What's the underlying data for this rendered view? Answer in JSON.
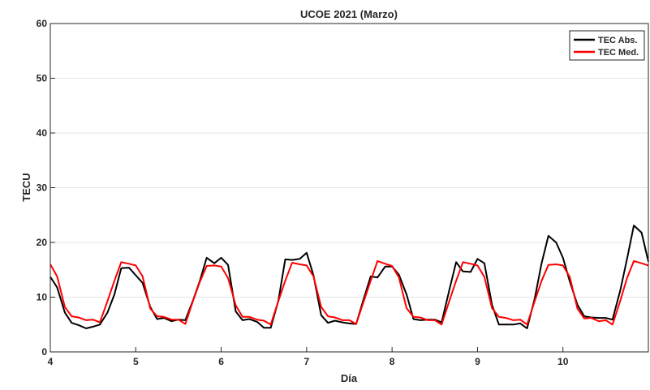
{
  "chart_data": {
    "type": "line",
    "title": "UCOE 2021 (Marzo)",
    "xlabel": "Día",
    "ylabel": "TECU",
    "xlim": [
      4,
      11
    ],
    "ylim": [
      0,
      60
    ],
    "xticks": [
      4,
      5,
      6,
      7,
      8,
      9,
      10
    ],
    "yticks": [
      0,
      10,
      20,
      30,
      40,
      50,
      60
    ],
    "grid": true,
    "legend_position": "top-right",
    "series": [
      {
        "name": "TEC Abs.",
        "color": "#000000",
        "points": [
          [
            4.0,
            13.7
          ],
          [
            4.08,
            11.8
          ],
          [
            4.17,
            7.2
          ],
          [
            4.25,
            5.3
          ],
          [
            4.33,
            4.9
          ],
          [
            4.42,
            4.3
          ],
          [
            4.5,
            4.6
          ],
          [
            4.58,
            5.0
          ],
          [
            4.67,
            7.2
          ],
          [
            4.75,
            10.5
          ],
          [
            4.83,
            15.3
          ],
          [
            4.92,
            15.4
          ],
          [
            5.0,
            14.0
          ],
          [
            5.08,
            12.6
          ],
          [
            5.17,
            8.2
          ],
          [
            5.25,
            6.0
          ],
          [
            5.33,
            6.2
          ],
          [
            5.42,
            5.6
          ],
          [
            5.5,
            5.9
          ],
          [
            5.58,
            5.8
          ],
          [
            5.67,
            9.4
          ],
          [
            5.75,
            13.0
          ],
          [
            5.83,
            17.2
          ],
          [
            5.92,
            16.2
          ],
          [
            6.0,
            17.2
          ],
          [
            6.08,
            15.9
          ],
          [
            6.17,
            7.4
          ],
          [
            6.25,
            5.8
          ],
          [
            6.33,
            6.0
          ],
          [
            6.42,
            5.5
          ],
          [
            6.5,
            4.4
          ],
          [
            6.58,
            4.4
          ],
          [
            6.67,
            9.4
          ],
          [
            6.75,
            16.9
          ],
          [
            6.83,
            16.8
          ],
          [
            6.92,
            17.0
          ],
          [
            7.0,
            18.1
          ],
          [
            7.08,
            14.0
          ],
          [
            7.17,
            6.7
          ],
          [
            7.25,
            5.3
          ],
          [
            7.33,
            5.7
          ],
          [
            7.42,
            5.4
          ],
          [
            7.5,
            5.2
          ],
          [
            7.58,
            5.1
          ],
          [
            7.67,
            9.8
          ],
          [
            7.75,
            13.8
          ],
          [
            7.83,
            13.6
          ],
          [
            7.92,
            15.6
          ],
          [
            8.0,
            15.6
          ],
          [
            8.08,
            14.1
          ],
          [
            8.17,
            10.5
          ],
          [
            8.25,
            6.0
          ],
          [
            8.33,
            5.8
          ],
          [
            8.42,
            5.9
          ],
          [
            8.5,
            5.9
          ],
          [
            8.58,
            5.4
          ],
          [
            8.67,
            11.3
          ],
          [
            8.75,
            16.4
          ],
          [
            8.83,
            14.7
          ],
          [
            8.92,
            14.6
          ],
          [
            9.0,
            17.0
          ],
          [
            9.08,
            16.2
          ],
          [
            9.17,
            8.6
          ],
          [
            9.25,
            5.0
          ],
          [
            9.33,
            5.0
          ],
          [
            9.42,
            5.0
          ],
          [
            9.5,
            5.2
          ],
          [
            9.58,
            4.3
          ],
          [
            9.67,
            9.8
          ],
          [
            9.75,
            16.2
          ],
          [
            9.83,
            21.2
          ],
          [
            9.92,
            20.0
          ],
          [
            10.0,
            17.2
          ],
          [
            10.08,
            12.9
          ],
          [
            10.17,
            8.6
          ],
          [
            10.25,
            6.5
          ],
          [
            10.33,
            6.3
          ],
          [
            10.42,
            6.2
          ],
          [
            10.5,
            6.2
          ],
          [
            10.58,
            5.9
          ],
          [
            10.67,
            11.2
          ],
          [
            10.75,
            17.0
          ],
          [
            10.83,
            23.1
          ],
          [
            10.92,
            21.8
          ],
          [
            11.0,
            16.5
          ]
        ]
      },
      {
        "name": "TEC Med.",
        "color": "#ff0000",
        "points": [
          [
            4.0,
            16.0
          ],
          [
            4.08,
            13.8
          ],
          [
            4.17,
            8.2
          ],
          [
            4.25,
            6.5
          ],
          [
            4.33,
            6.3
          ],
          [
            4.42,
            5.8
          ],
          [
            4.5,
            5.9
          ],
          [
            4.58,
            5.4
          ],
          [
            4.67,
            9.3
          ],
          [
            4.75,
            13.0
          ],
          [
            4.83,
            16.4
          ],
          [
            4.92,
            16.1
          ],
          [
            5.0,
            15.8
          ],
          [
            5.08,
            13.8
          ],
          [
            5.17,
            7.9
          ],
          [
            5.25,
            6.5
          ],
          [
            5.33,
            6.4
          ],
          [
            5.42,
            5.9
          ],
          [
            5.5,
            5.9
          ],
          [
            5.58,
            5.1
          ],
          [
            5.67,
            9.3
          ],
          [
            5.75,
            12.8
          ],
          [
            5.83,
            15.7
          ],
          [
            5.92,
            15.8
          ],
          [
            6.0,
            15.6
          ],
          [
            6.08,
            13.5
          ],
          [
            6.17,
            8.5
          ],
          [
            6.25,
            6.4
          ],
          [
            6.33,
            6.4
          ],
          [
            6.42,
            5.9
          ],
          [
            6.5,
            5.7
          ],
          [
            6.58,
            5.0
          ],
          [
            6.67,
            9.3
          ],
          [
            6.75,
            13.0
          ],
          [
            6.83,
            16.3
          ],
          [
            6.92,
            16.0
          ],
          [
            7.0,
            15.8
          ],
          [
            7.08,
            13.8
          ],
          [
            7.17,
            8.2
          ],
          [
            7.25,
            6.5
          ],
          [
            7.33,
            6.3
          ],
          [
            7.42,
            5.8
          ],
          [
            7.5,
            5.8
          ],
          [
            7.58,
            5.1
          ],
          [
            7.67,
            9.3
          ],
          [
            7.75,
            13.0
          ],
          [
            7.83,
            16.6
          ],
          [
            7.92,
            16.1
          ],
          [
            8.0,
            15.7
          ],
          [
            8.08,
            13.6
          ],
          [
            8.17,
            8.0
          ],
          [
            8.25,
            6.4
          ],
          [
            8.33,
            6.3
          ],
          [
            8.42,
            5.8
          ],
          [
            8.5,
            5.8
          ],
          [
            8.58,
            5.0
          ],
          [
            8.67,
            9.3
          ],
          [
            8.75,
            13.0
          ],
          [
            8.83,
            16.4
          ],
          [
            8.92,
            16.1
          ],
          [
            9.0,
            15.8
          ],
          [
            9.08,
            13.7
          ],
          [
            9.17,
            8.0
          ],
          [
            9.25,
            6.4
          ],
          [
            9.33,
            6.2
          ],
          [
            9.42,
            5.8
          ],
          [
            9.5,
            5.9
          ],
          [
            9.58,
            5.0
          ],
          [
            9.67,
            9.3
          ],
          [
            9.75,
            13.0
          ],
          [
            9.83,
            15.9
          ],
          [
            9.92,
            16.0
          ],
          [
            10.0,
            15.8
          ],
          [
            10.08,
            13.7
          ],
          [
            10.17,
            7.9
          ],
          [
            10.25,
            6.1
          ],
          [
            10.33,
            6.2
          ],
          [
            10.42,
            5.6
          ],
          [
            10.5,
            5.8
          ],
          [
            10.58,
            5.0
          ],
          [
            10.67,
            9.3
          ],
          [
            10.75,
            13.5
          ],
          [
            10.83,
            16.6
          ],
          [
            10.92,
            16.2
          ],
          [
            11.0,
            15.8
          ]
        ]
      }
    ]
  }
}
